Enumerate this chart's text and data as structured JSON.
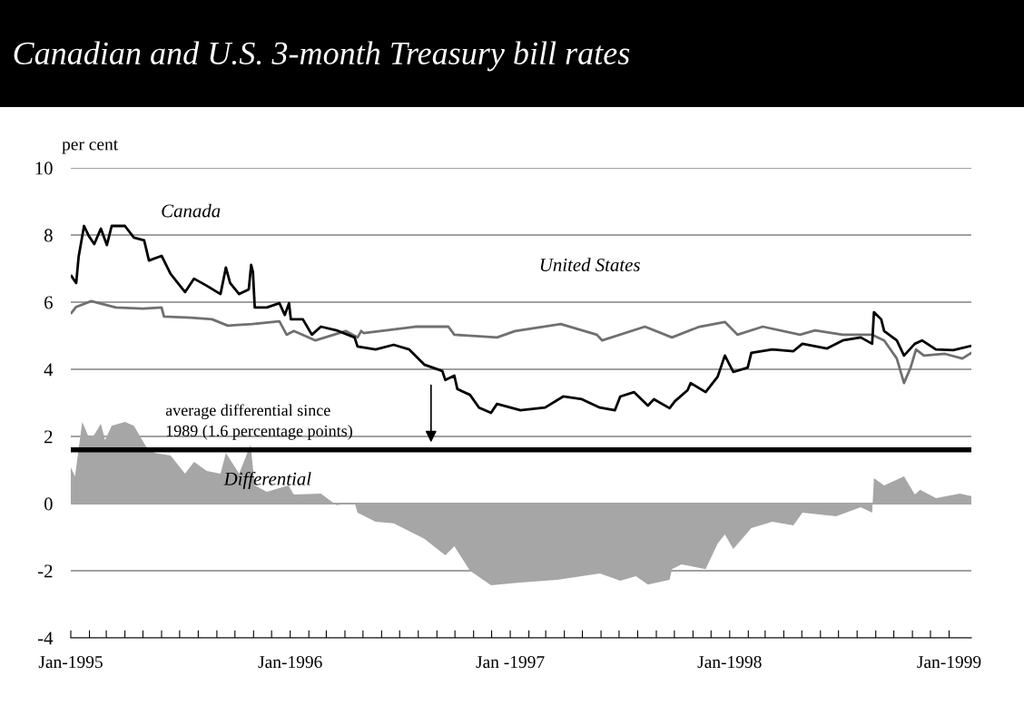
{
  "chart_data": {
    "type": "line",
    "title": "Canadian and U.S. 3-month Treasury bill rates",
    "ylabel": "per cent",
    "series": [
      {
        "name": "Differential",
        "type": "area",
        "color": "#a6a6a6",
        "x": [
          "1995-01-01",
          "1995-01-08",
          "1995-01-20",
          "1995-01-31",
          "1995-02-09",
          "1995-02-20",
          "1995-02-27",
          "1995-03-10",
          "1995-04-01",
          "1995-04-16",
          "1995-05-06",
          "1995-05-21",
          "1995-06-16",
          "1995-07-10",
          "1995-07-25",
          "1995-08-15",
          "1995-09-07",
          "1995-09-16",
          "1995-10-08",
          "1995-10-27",
          "1995-11-03",
          "1995-11-23",
          "1995-12-29",
          "1996-01-07",
          "1996-02-21",
          "1996-03-18",
          "1996-04-17",
          "1996-04-22",
          "1996-05-22",
          "1996-06-21",
          "1996-08-11",
          "1996-09-15",
          "1996-09-30",
          "1996-10-26",
          "1996-11-30",
          "1997-01-18",
          "1997-03-20",
          "1997-05-30",
          "1997-07-03",
          "1997-07-29",
          "1997-08-18",
          "1997-09-23",
          "1997-09-27",
          "1997-10-13",
          "1997-11-22",
          "1997-12-12",
          "1997-12-24",
          "1998-01-07",
          "1998-02-06",
          "1998-03-13",
          "1998-04-17",
          "1998-05-02",
          "1998-06-27",
          "1998-08-07",
          "1998-08-26",
          "1998-08-29",
          "1998-09-15",
          "1998-10-18",
          "1998-11-05",
          "1998-11-14",
          "1998-12-10",
          "1999-01-19",
          "1999-02-07"
        ],
        "values": [
          1.08,
          0.81,
          2.43,
          1.97,
          2.05,
          2.38,
          1.89,
          2.32,
          2.43,
          2.32,
          1.7,
          1.51,
          1.43,
          0.89,
          1.24,
          0.97,
          0.89,
          1.51,
          0.89,
          1.76,
          0.54,
          0.35,
          0.54,
          0.27,
          0.3,
          -0.05,
          0.03,
          -0.27,
          -0.54,
          -0.59,
          -1.05,
          -1.54,
          -1.27,
          -2.0,
          -2.43,
          -2.35,
          -2.27,
          -2.08,
          -2.3,
          -2.16,
          -2.41,
          -2.27,
          -1.95,
          -1.81,
          -1.95,
          -1.19,
          -0.92,
          -1.35,
          -0.73,
          -0.54,
          -0.65,
          -0.27,
          -0.38,
          -0.11,
          -0.27,
          0.76,
          0.54,
          0.81,
          0.27,
          0.41,
          0.16,
          0.3,
          0.22
        ]
      },
      {
        "name": "United States",
        "color": "#707070",
        "x": [
          "1995-01-02",
          "1995-01-10",
          "1995-02-04",
          "1995-03-17",
          "1995-05-01",
          "1995-06-01",
          "1995-06-05",
          "1995-07-20",
          "1995-08-24",
          "1995-09-19",
          "1995-10-30",
          "1995-12-14",
          "1995-12-26",
          "1996-01-07",
          "1996-02-12",
          "1996-04-02",
          "1996-04-22",
          "1996-04-28",
          "1996-05-02",
          "1996-07-27",
          "1996-09-20",
          "1996-09-30",
          "1996-12-10",
          "1997-01-09",
          "1997-03-26",
          "1997-05-25",
          "1997-06-03",
          "1997-08-13",
          "1997-09-27",
          "1997-11-12",
          "1997-12-24",
          "1998-01-14",
          "1998-02-25",
          "1998-04-28",
          "1998-05-23",
          "1998-07-08",
          "1998-08-26",
          "1998-09-15",
          "1998-10-06",
          "1998-10-18",
          "1998-10-29",
          "1998-11-07",
          "1998-11-20",
          "1998-12-25",
          "1999-01-23",
          "1999-02-07"
        ],
        "values": [
          5.68,
          5.86,
          6.03,
          5.84,
          5.81,
          5.84,
          5.57,
          5.54,
          5.49,
          5.3,
          5.35,
          5.43,
          5.03,
          5.14,
          4.86,
          5.14,
          4.95,
          5.14,
          5.08,
          5.27,
          5.27,
          5.03,
          4.95,
          5.14,
          5.35,
          5.03,
          4.86,
          5.27,
          4.95,
          5.27,
          5.41,
          5.03,
          5.27,
          5.03,
          5.16,
          5.03,
          5.03,
          4.86,
          4.32,
          3.59,
          4.05,
          4.59,
          4.41,
          4.46,
          4.32,
          4.49
        ]
      },
      {
        "name": "Canada",
        "color": "#000000",
        "x": [
          "1995-01-02",
          "1995-01-10",
          "1995-01-14",
          "1995-01-23",
          "1995-01-31",
          "1995-02-09",
          "1995-02-20",
          "1995-03-02",
          "1995-03-10",
          "1995-04-01",
          "1995-04-16",
          "1995-05-03",
          "1995-05-11",
          "1995-06-01",
          "1995-06-16",
          "1995-07-10",
          "1995-07-25",
          "1995-08-15",
          "1995-09-07",
          "1995-09-16",
          "1995-09-23",
          "1995-10-08",
          "1995-10-24",
          "1995-10-28",
          "1995-10-31",
          "1995-11-03",
          "1995-11-23",
          "1995-12-14",
          "1995-12-23",
          "1995-12-30",
          "1996-01-02",
          "1996-01-22",
          "1996-02-06",
          "1996-02-21",
          "1996-03-18",
          "1996-04-17",
          "1996-04-22",
          "1996-05-22",
          "1996-06-21",
          "1996-07-17",
          "1996-08-11",
          "1996-09-10",
          "1996-09-15",
          "1996-09-30",
          "1996-10-05",
          "1996-10-26",
          "1996-11-10",
          "1996-11-30",
          "1996-12-10",
          "1997-01-18",
          "1997-02-28",
          "1997-03-30",
          "1997-04-30",
          "1997-05-30",
          "1997-06-24",
          "1997-07-03",
          "1997-07-26",
          "1997-08-18",
          "1997-08-28",
          "1997-09-23",
          "1997-10-02",
          "1997-10-23",
          "1997-10-28",
          "1997-11-22",
          "1997-12-12",
          "1997-12-24",
          "1998-01-07",
          "1998-01-31",
          "1998-02-06",
          "1998-03-13",
          "1998-04-17",
          "1998-05-02",
          "1998-06-12",
          "1998-07-08",
          "1998-08-07",
          "1998-08-26",
          "1998-08-29",
          "1998-09-10",
          "1998-09-15",
          "1998-10-06",
          "1998-10-18",
          "1998-11-05",
          "1998-11-17",
          "1998-12-10",
          "1999-01-08",
          "1999-02-07"
        ],
        "values": [
          6.78,
          6.57,
          7.35,
          8.27,
          7.97,
          7.73,
          8.19,
          7.7,
          8.27,
          8.27,
          7.92,
          7.84,
          7.24,
          7.38,
          6.84,
          6.3,
          6.7,
          6.49,
          6.24,
          7.03,
          6.57,
          6.24,
          6.38,
          7.11,
          6.89,
          5.84,
          5.84,
          5.97,
          5.62,
          5.97,
          5.49,
          5.49,
          5.03,
          5.27,
          5.16,
          4.95,
          4.68,
          4.59,
          4.73,
          4.59,
          4.14,
          3.95,
          3.68,
          3.81,
          3.41,
          3.24,
          2.86,
          2.7,
          2.97,
          2.78,
          2.86,
          3.19,
          3.11,
          2.86,
          2.78,
          3.19,
          3.32,
          2.92,
          3.11,
          2.84,
          3.05,
          3.38,
          3.59,
          3.32,
          3.78,
          4.41,
          3.92,
          4.05,
          4.49,
          4.59,
          4.54,
          4.76,
          4.62,
          4.86,
          4.95,
          4.76,
          5.7,
          5.49,
          5.14,
          4.86,
          4.41,
          4.76,
          4.86,
          4.59,
          4.57,
          4.7
        ]
      }
    ],
    "ref_lines": [
      {
        "axis": "y",
        "value": 1.6,
        "label": "average differential since\n1989 (1.6 percentage points)",
        "color": "#000000"
      }
    ],
    "xlim": [
      "1995-01-01",
      "1999-02-07"
    ],
    "xticks": [
      {
        "value": "1995-01-01",
        "label": "Jan-1995"
      },
      {
        "value": "1995-02-01",
        "label": null
      },
      {
        "value": "1995-03-01",
        "label": null
      },
      {
        "value": "1995-04-01",
        "label": null
      },
      {
        "value": "1995-05-01",
        "label": null
      },
      {
        "value": "1995-06-01",
        "label": null
      },
      {
        "value": "1995-07-01",
        "label": null
      },
      {
        "value": "1995-08-01",
        "label": null
      },
      {
        "value": "1995-09-01",
        "label": null
      },
      {
        "value": "1995-10-01",
        "label": null
      },
      {
        "value": "1995-11-01",
        "label": null
      },
      {
        "value": "1995-12-01",
        "label": null
      },
      {
        "value": "1996-01-01",
        "label": "Jan-1996"
      },
      {
        "value": "1996-02-01",
        "label": null
      },
      {
        "value": "1996-03-01",
        "label": null
      },
      {
        "value": "1996-04-01",
        "label": null
      },
      {
        "value": "1996-05-01",
        "label": null
      },
      {
        "value": "1996-06-01",
        "label": null
      },
      {
        "value": "1996-07-01",
        "label": null
      },
      {
        "value": "1996-08-01",
        "label": null
      },
      {
        "value": "1996-09-01",
        "label": null
      },
      {
        "value": "1996-10-01",
        "label": null
      },
      {
        "value": "1996-11-01",
        "label": null
      },
      {
        "value": "1996-12-01",
        "label": null
      },
      {
        "value": "1997-01-01",
        "label": "Jan -1997"
      },
      {
        "value": "1997-02-01",
        "label": null
      },
      {
        "value": "1997-03-01",
        "label": null
      },
      {
        "value": "1997-04-01",
        "label": null
      },
      {
        "value": "1997-05-01",
        "label": null
      },
      {
        "value": "1997-06-01",
        "label": null
      },
      {
        "value": "1997-07-01",
        "label": null
      },
      {
        "value": "1997-08-01",
        "label": null
      },
      {
        "value": "1997-09-01",
        "label": null
      },
      {
        "value": "1997-10-01",
        "label": null
      },
      {
        "value": "1997-11-01",
        "label": null
      },
      {
        "value": "1997-12-01",
        "label": null
      },
      {
        "value": "1998-01-01",
        "label": "Jan-1998"
      },
      {
        "value": "1998-02-01",
        "label": null
      },
      {
        "value": "1998-03-01",
        "label": null
      },
      {
        "value": "1998-04-01",
        "label": null
      },
      {
        "value": "1998-05-01",
        "label": null
      },
      {
        "value": "1998-06-01",
        "label": null
      },
      {
        "value": "1998-07-01",
        "label": null
      },
      {
        "value": "1998-08-01",
        "label": null
      },
      {
        "value": "1998-09-01",
        "label": null
      },
      {
        "value": "1998-10-01",
        "label": null
      },
      {
        "value": "1998-11-01",
        "label": null
      },
      {
        "value": "1998-12-01",
        "label": null
      },
      {
        "value": "1999-01-01",
        "label": "Jan-1999"
      }
    ],
    "ylim": [
      -4,
      10
    ],
    "yticks": [
      -4,
      -2,
      0,
      2,
      4,
      6,
      8,
      10
    ],
    "grid": "y",
    "legend": false
  }
}
